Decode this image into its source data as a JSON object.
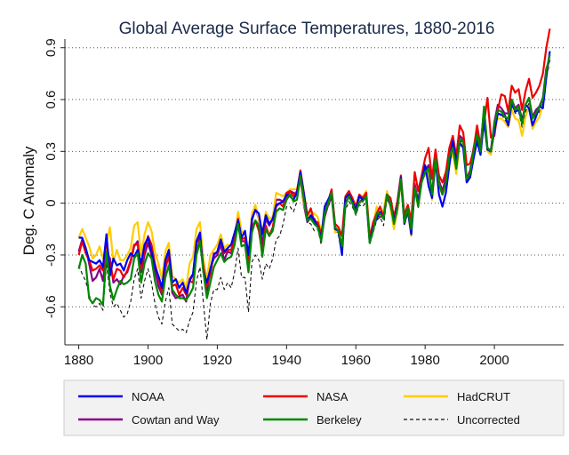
{
  "chart_data": {
    "type": "line",
    "title": "Global Average Surface Temperatures, 1880-2016",
    "xlabel": "",
    "ylabel": "Deg. C Anomaly",
    "xlim": [
      1876,
      2020
    ],
    "ylim": [
      -0.82,
      0.95
    ],
    "x_ticks": [
      1880,
      1900,
      1920,
      1940,
      1960,
      1980,
      2000
    ],
    "x_tick_labels": [
      "1880",
      "1900",
      "1920",
      "1940",
      "1960",
      "1980",
      "2000"
    ],
    "y_ticks": [
      -0.6,
      -0.3,
      0,
      0.3,
      0.6,
      0.9
    ],
    "y_tick_labels": [
      "-0.6",
      "-0.3",
      "0",
      "0.3",
      "0.6",
      "0.9"
    ],
    "grid": "horizontal dotted",
    "legend_position": "bottom",
    "x_start": 1880,
    "series": [
      {
        "name": "NOAA",
        "color": "#0000ee",
        "dash": "solid",
        "values": [
          -0.2,
          -0.2,
          -0.26,
          -0.33,
          -0.34,
          -0.35,
          -0.33,
          -0.37,
          -0.18,
          -0.42,
          -0.32,
          -0.36,
          -0.35,
          -0.39,
          -0.33,
          -0.29,
          -0.31,
          -0.27,
          -0.35,
          -0.24,
          -0.2,
          -0.28,
          -0.37,
          -0.42,
          -0.49,
          -0.33,
          -0.27,
          -0.46,
          -0.44,
          -0.49,
          -0.46,
          -0.52,
          -0.45,
          -0.41,
          -0.22,
          -0.17,
          -0.4,
          -0.46,
          -0.38,
          -0.3,
          -0.28,
          -0.21,
          -0.28,
          -0.26,
          -0.24,
          -0.17,
          -0.1,
          -0.2,
          -0.16,
          -0.3,
          -0.09,
          -0.04,
          -0.06,
          -0.18,
          -0.07,
          -0.12,
          -0.09,
          -0.01,
          0.0,
          0.01,
          0.05,
          0.04,
          0.02,
          0.06,
          0.18,
          0.05,
          -0.1,
          -0.07,
          -0.1,
          -0.14,
          -0.2,
          -0.02,
          0.02,
          0.06,
          -0.15,
          -0.16,
          -0.3,
          0.03,
          0.05,
          0.01,
          -0.04,
          0.04,
          0.02,
          0.03,
          -0.23,
          -0.14,
          -0.09,
          -0.05,
          -0.09,
          0.05,
          -0.01,
          -0.1,
          -0.02,
          0.15,
          -0.12,
          -0.04,
          -0.18,
          0.08,
          0.0,
          0.13,
          0.22,
          0.1,
          0.03,
          0.25,
          0.05,
          -0.02,
          0.06,
          0.22,
          0.36,
          0.24,
          0.35,
          0.32,
          0.12,
          0.15,
          0.26,
          0.36,
          0.28,
          0.48,
          0.31,
          0.3,
          0.42,
          0.52,
          0.51,
          0.51,
          0.45,
          0.58,
          0.53,
          0.54,
          0.47,
          0.57,
          0.55,
          0.45,
          0.5,
          0.56,
          0.55,
          0.73,
          0.88
        ]
      },
      {
        "name": "NASA",
        "color": "#ee0000",
        "dash": "solid",
        "values": [
          -0.3,
          -0.22,
          -0.29,
          -0.33,
          -0.39,
          -0.38,
          -0.36,
          -0.39,
          -0.22,
          -0.36,
          -0.44,
          -0.38,
          -0.39,
          -0.43,
          -0.39,
          -0.33,
          -0.24,
          -0.24,
          -0.38,
          -0.27,
          -0.19,
          -0.24,
          -0.35,
          -0.43,
          -0.52,
          -0.36,
          -0.31,
          -0.48,
          -0.47,
          -0.53,
          -0.49,
          -0.53,
          -0.45,
          -0.46,
          -0.28,
          -0.21,
          -0.37,
          -0.48,
          -0.41,
          -0.29,
          -0.29,
          -0.21,
          -0.29,
          -0.27,
          -0.27,
          -0.21,
          -0.09,
          -0.21,
          -0.2,
          -0.35,
          -0.14,
          -0.1,
          -0.16,
          -0.29,
          -0.13,
          -0.19,
          -0.14,
          -0.02,
          -0.0,
          -0.02,
          0.06,
          0.07,
          0.04,
          0.07,
          0.19,
          0.06,
          -0.07,
          -0.03,
          -0.11,
          -0.11,
          -0.18,
          -0.07,
          0.01,
          0.08,
          -0.12,
          -0.14,
          -0.19,
          0.04,
          0.07,
          0.03,
          -0.02,
          0.05,
          0.03,
          0.06,
          -0.2,
          -0.11,
          -0.06,
          -0.02,
          -0.08,
          0.05,
          0.03,
          -0.08,
          0.01,
          0.16,
          -0.07,
          -0.01,
          -0.1,
          0.18,
          0.07,
          0.16,
          0.26,
          0.32,
          0.14,
          0.31,
          0.16,
          0.12,
          0.18,
          0.32,
          0.39,
          0.27,
          0.45,
          0.41,
          0.22,
          0.23,
          0.31,
          0.45,
          0.33,
          0.46,
          0.61,
          0.38,
          0.39,
          0.54,
          0.63,
          0.62,
          0.53,
          0.68,
          0.64,
          0.66,
          0.54,
          0.65,
          0.72,
          0.61,
          0.64,
          0.68,
          0.75,
          0.9,
          1.01
        ]
      },
      {
        "name": "HadCRUT",
        "color": "#ffcc00",
        "dash": "solid",
        "values": [
          -0.2,
          -0.15,
          -0.2,
          -0.25,
          -0.32,
          -0.3,
          -0.25,
          -0.32,
          -0.23,
          -0.14,
          -0.34,
          -0.27,
          -0.33,
          -0.33,
          -0.3,
          -0.26,
          -0.13,
          -0.11,
          -0.3,
          -0.18,
          -0.11,
          -0.16,
          -0.28,
          -0.35,
          -0.44,
          -0.28,
          -0.23,
          -0.42,
          -0.44,
          -0.46,
          -0.44,
          -0.49,
          -0.35,
          -0.31,
          -0.15,
          -0.11,
          -0.33,
          -0.44,
          -0.3,
          -0.27,
          -0.24,
          -0.18,
          -0.26,
          -0.24,
          -0.25,
          -0.19,
          -0.05,
          -0.16,
          -0.18,
          -0.32,
          -0.06,
          -0.01,
          -0.09,
          -0.18,
          -0.05,
          -0.09,
          -0.08,
          0.06,
          0.05,
          0.04,
          0.06,
          0.08,
          0.08,
          0.08,
          0.16,
          0.0,
          -0.08,
          -0.05,
          -0.06,
          -0.08,
          -0.17,
          -0.06,
          0.0,
          0.07,
          -0.17,
          -0.15,
          -0.27,
          0.01,
          0.04,
          0.0,
          -0.04,
          0.02,
          0.04,
          0.07,
          -0.19,
          -0.13,
          -0.02,
          -0.07,
          -0.04,
          0.07,
          -0.03,
          -0.15,
          -0.04,
          0.13,
          -0.1,
          -0.05,
          -0.19,
          0.09,
          -0.02,
          0.14,
          0.16,
          0.19,
          0.02,
          0.22,
          0.11,
          0.05,
          0.1,
          0.24,
          0.29,
          0.17,
          0.35,
          0.34,
          0.13,
          0.16,
          0.28,
          0.36,
          0.29,
          0.53,
          0.3,
          0.28,
          0.43,
          0.49,
          0.49,
          0.47,
          0.44,
          0.54,
          0.49,
          0.48,
          0.39,
          0.5,
          0.56,
          0.43,
          0.47,
          0.5,
          0.57,
          0.76,
          0.79
        ]
      },
      {
        "name": "Cowtan and Way",
        "color": "#880088",
        "dash": "solid",
        "values": [
          -0.28,
          -0.21,
          -0.26,
          -0.35,
          -0.45,
          -0.43,
          -0.38,
          -0.45,
          -0.28,
          -0.32,
          -0.46,
          -0.44,
          -0.47,
          -0.42,
          -0.4,
          -0.34,
          -0.25,
          -0.22,
          -0.4,
          -0.3,
          -0.23,
          -0.3,
          -0.39,
          -0.48,
          -0.53,
          -0.38,
          -0.3,
          -0.52,
          -0.55,
          -0.54,
          -0.53,
          -0.57,
          -0.44,
          -0.41,
          -0.23,
          -0.2,
          -0.39,
          -0.51,
          -0.38,
          -0.32,
          -0.3,
          -0.24,
          -0.33,
          -0.28,
          -0.29,
          -0.2,
          -0.06,
          -0.22,
          -0.22,
          -0.37,
          -0.1,
          -0.03,
          -0.09,
          -0.24,
          -0.09,
          -0.13,
          -0.09,
          0.02,
          0.02,
          0.01,
          0.04,
          0.07,
          0.06,
          0.05,
          0.14,
          -0.01,
          -0.11,
          -0.08,
          -0.09,
          -0.13,
          -0.21,
          -0.08,
          -0.01,
          0.04,
          -0.15,
          -0.17,
          -0.26,
          0.01,
          0.05,
          0.0,
          -0.05,
          0.01,
          0.02,
          0.05,
          -0.21,
          -0.15,
          -0.05,
          -0.08,
          -0.07,
          0.06,
          -0.02,
          -0.13,
          -0.03,
          0.13,
          -0.09,
          -0.04,
          -0.16,
          0.11,
          0.01,
          0.16,
          0.19,
          0.22,
          0.05,
          0.26,
          0.13,
          0.07,
          0.15,
          0.3,
          0.35,
          0.22,
          0.39,
          0.37,
          0.14,
          0.19,
          0.32,
          0.41,
          0.33,
          0.54,
          0.31,
          0.31,
          0.47,
          0.57,
          0.55,
          0.52,
          0.52,
          0.6,
          0.55,
          0.57,
          0.48,
          0.57,
          0.61,
          0.5,
          0.54,
          0.56,
          0.61,
          0.78,
          0.83
        ]
      },
      {
        "name": "Berkeley",
        "color": "#008800",
        "dash": "solid",
        "values": [
          -0.38,
          -0.3,
          -0.35,
          -0.55,
          -0.58,
          -0.55,
          -0.56,
          -0.59,
          -0.28,
          -0.48,
          -0.56,
          -0.5,
          -0.45,
          -0.47,
          -0.46,
          -0.44,
          -0.32,
          -0.29,
          -0.46,
          -0.35,
          -0.29,
          -0.32,
          -0.45,
          -0.53,
          -0.57,
          -0.43,
          -0.36,
          -0.5,
          -0.53,
          -0.55,
          -0.55,
          -0.56,
          -0.53,
          -0.49,
          -0.3,
          -0.22,
          -0.4,
          -0.55,
          -0.46,
          -0.37,
          -0.33,
          -0.29,
          -0.34,
          -0.32,
          -0.31,
          -0.24,
          -0.12,
          -0.25,
          -0.24,
          -0.4,
          -0.17,
          -0.1,
          -0.13,
          -0.31,
          -0.15,
          -0.19,
          -0.16,
          -0.05,
          -0.03,
          -0.04,
          0.02,
          0.05,
          0.01,
          0.02,
          0.16,
          0.02,
          -0.1,
          -0.09,
          -0.12,
          -0.14,
          -0.22,
          -0.06,
          0.0,
          0.06,
          -0.14,
          -0.16,
          -0.25,
          -0.01,
          0.04,
          0.0,
          -0.06,
          0.01,
          0.01,
          0.04,
          -0.23,
          -0.16,
          -0.06,
          -0.06,
          -0.09,
          0.05,
          0.0,
          -0.12,
          -0.03,
          0.14,
          -0.11,
          -0.03,
          -0.15,
          0.09,
          -0.02,
          0.12,
          0.18,
          0.2,
          0.05,
          0.26,
          0.11,
          0.05,
          0.12,
          0.27,
          0.32,
          0.2,
          0.37,
          0.36,
          0.14,
          0.17,
          0.3,
          0.4,
          0.3,
          0.56,
          0.32,
          0.3,
          0.46,
          0.54,
          0.53,
          0.5,
          0.49,
          0.6,
          0.54,
          0.56,
          0.46,
          0.57,
          0.61,
          0.49,
          0.52,
          0.56,
          0.6,
          0.77,
          0.86
        ]
      },
      {
        "name": "Uncorrected",
        "color": "#111111",
        "dash": "4,3",
        "values": [
          -0.36,
          -0.41,
          -0.45,
          -0.53,
          -0.59,
          -0.6,
          -0.58,
          -0.62,
          -0.35,
          -0.52,
          -0.6,
          -0.58,
          -0.62,
          -0.66,
          -0.64,
          -0.57,
          -0.44,
          -0.38,
          -0.55,
          -0.45,
          -0.38,
          -0.46,
          -0.58,
          -0.66,
          -0.7,
          -0.57,
          -0.49,
          -0.7,
          -0.72,
          -0.74,
          -0.73,
          -0.75,
          -0.68,
          -0.63,
          -0.45,
          -0.37,
          -0.58,
          -0.79,
          -0.58,
          -0.5,
          -0.5,
          -0.43,
          -0.5,
          -0.46,
          -0.49,
          -0.4,
          -0.26,
          -0.43,
          -0.43,
          -0.63,
          -0.34,
          -0.3,
          -0.33,
          -0.44,
          -0.35,
          -0.38,
          -0.32,
          -0.21,
          -0.19,
          -0.12,
          -0.02,
          -0.02,
          -0.05,
          0.01,
          0.18,
          0.01,
          -0.11,
          -0.12,
          -0.16,
          -0.15,
          -0.24,
          -0.07,
          -0.02,
          0.02,
          -0.15,
          -0.19,
          -0.3,
          -0.04,
          0.01,
          -0.02,
          -0.07,
          -0.01,
          -0.02,
          0.01,
          -0.24,
          -0.17,
          -0.1,
          -0.08,
          -0.13,
          0.03,
          -0.03,
          -0.13,
          -0.06,
          0.11,
          -0.13,
          -0.06,
          -0.17,
          0.08,
          -0.03,
          0.12,
          0.17,
          0.19,
          0.04,
          0.24,
          0.1,
          0.04,
          0.1,
          0.26,
          0.32,
          0.21,
          0.36,
          0.35,
          0.13,
          0.17,
          0.29,
          0.38,
          0.29,
          0.52,
          0.31,
          0.29,
          0.44,
          0.52,
          0.52,
          0.48,
          0.46,
          0.57,
          0.52,
          0.53,
          0.44,
          0.53,
          0.58,
          0.46,
          0.5,
          0.53,
          0.59,
          0.75,
          0.84
        ]
      }
    ]
  }
}
